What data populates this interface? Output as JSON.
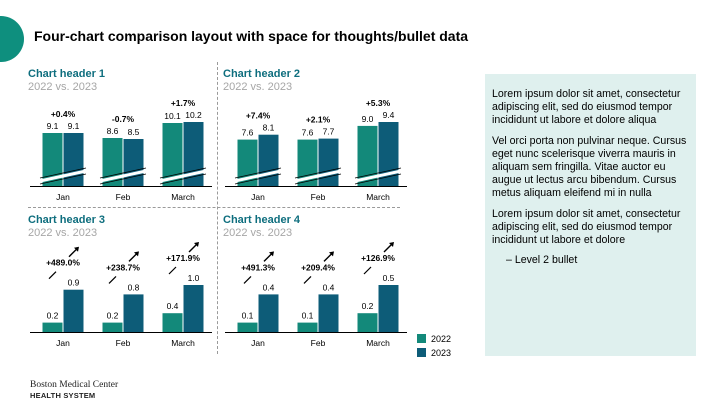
{
  "page": {
    "title": "Four-chart comparison layout with space for thoughts/bullet data",
    "legend": [
      {
        "label": "2022",
        "color": "#13897a"
      },
      {
        "label": "2023",
        "color": "#0d5c78"
      }
    ],
    "notes": {
      "paragraphs": [
        "Lorem ipsum dolor sit amet, consectetur adipiscing elit, sed do eiusmod tempor incididunt ut labore et dolore aliqua",
        "Vel orci porta non pulvinar neque. Cursus eget nunc scelerisque viverra mauris in aliquam sem fringilla. Vitae auctor eu augue ut lectus arcu bibendum. Cursus metus aliquam eleifend mi in nulla",
        "Lorem ipsum dolor sit amet, consectetur adipiscing elit, sed do eiusmod tempor incididunt ut labore et dolore"
      ],
      "level2": "– Level 2 bullet"
    },
    "brand": {
      "line1": "Boston Medical Center",
      "line2": "HEALTH SYSTEM"
    }
  },
  "chart_data": [
    {
      "type": "bar",
      "title": "Chart header 1",
      "subtitle": "2022 vs. 2023",
      "categories": [
        "Jan",
        "Feb",
        "March"
      ],
      "series": [
        {
          "name": "2022",
          "values": [
            9.1,
            8.6,
            10.1
          ]
        },
        {
          "name": "2023",
          "values": [
            9.1,
            8.5,
            10.2
          ]
        }
      ],
      "changes": [
        "+0.4%",
        "-0.7%",
        "+1.7%"
      ],
      "axis_break": true,
      "arrows": false
    },
    {
      "type": "bar",
      "title": "Chart header 2",
      "subtitle": "2022 vs. 2023",
      "categories": [
        "Jan",
        "Feb",
        "March"
      ],
      "series": [
        {
          "name": "2022",
          "values": [
            7.6,
            7.6,
            9.0
          ]
        },
        {
          "name": "2023",
          "values": [
            8.1,
            7.7,
            9.4
          ]
        }
      ],
      "changes": [
        "+7.4%",
        "+2.1%",
        "+5.3%"
      ],
      "axis_break": true,
      "arrows": false
    },
    {
      "type": "bar",
      "title": "Chart header 3",
      "subtitle": "2022 vs. 2023",
      "categories": [
        "Jan",
        "Feb",
        "March"
      ],
      "series": [
        {
          "name": "2022",
          "values": [
            0.2,
            0.2,
            0.4
          ]
        },
        {
          "name": "2023",
          "values": [
            0.9,
            0.8,
            1.0
          ]
        }
      ],
      "changes": [
        "+489.0%",
        "+238.7%",
        "+171.9%"
      ],
      "axis_break": false,
      "arrows": true
    },
    {
      "type": "bar",
      "title": "Chart header 4",
      "subtitle": "2022 vs. 2023",
      "categories": [
        "Jan",
        "Feb",
        "March"
      ],
      "series": [
        {
          "name": "2022",
          "values": [
            0.1,
            0.1,
            0.2
          ]
        },
        {
          "name": "2023",
          "values": [
            0.4,
            0.4,
            0.5
          ]
        }
      ],
      "changes": [
        "+491.3%",
        "+209.4%",
        "+126.9%"
      ],
      "axis_break": false,
      "arrows": true
    }
  ]
}
